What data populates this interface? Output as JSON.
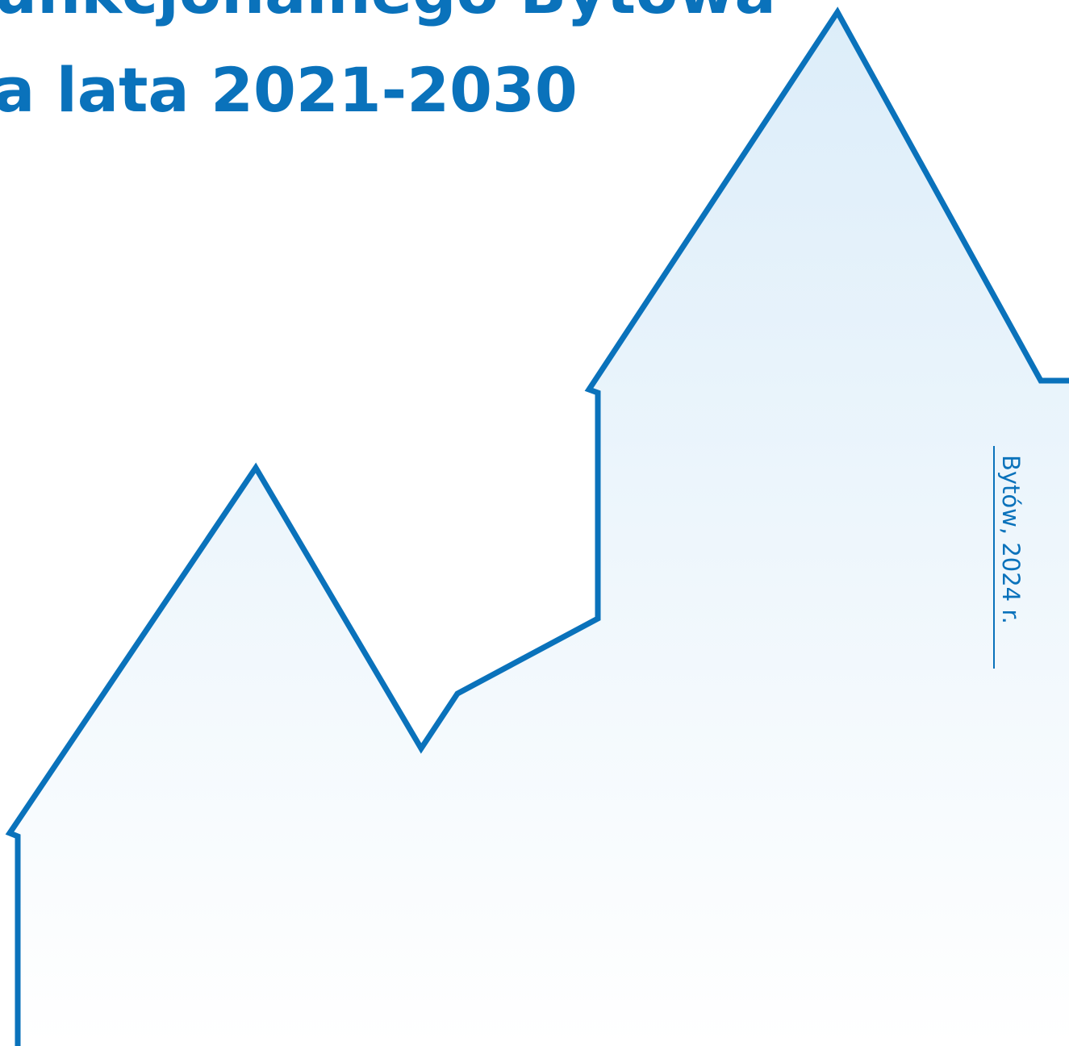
{
  "header": {
    "title_lines": [
      "unkcjonalnego Bytowa",
      "a lata 2021-2030"
    ]
  },
  "footer": {
    "place_date": "Bytów, 2024 r."
  }
}
